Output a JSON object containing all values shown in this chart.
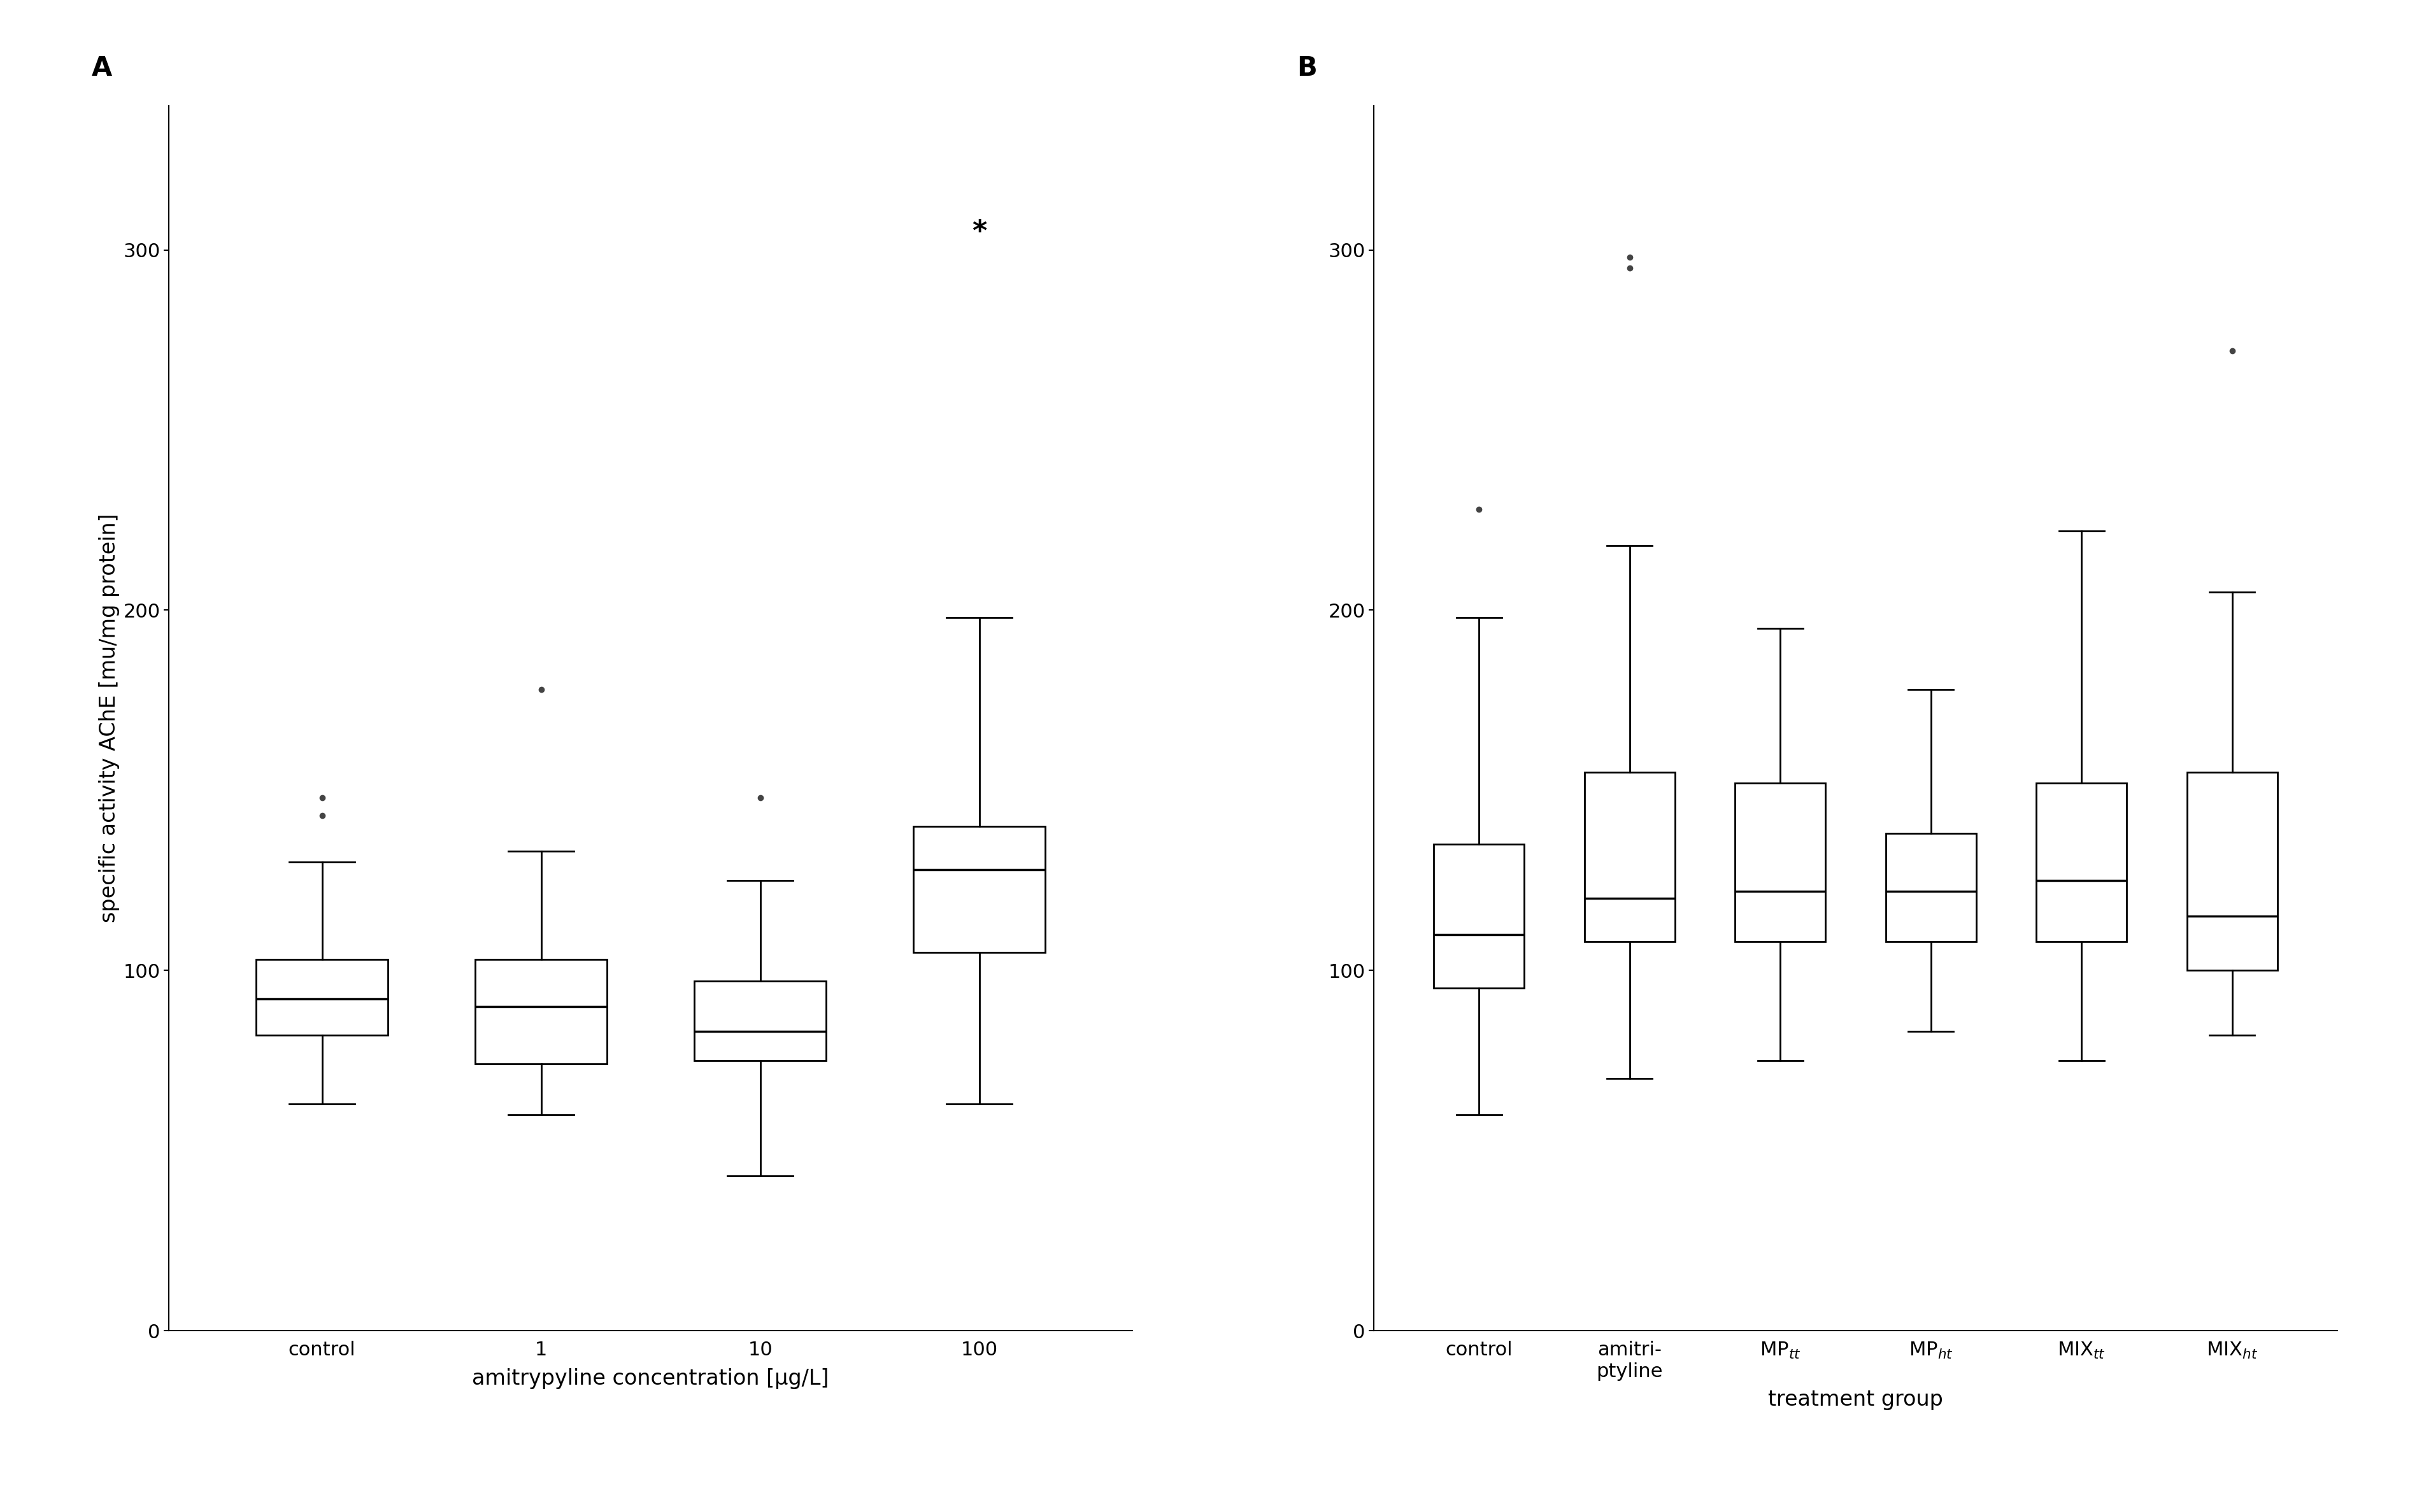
{
  "panel_A": {
    "labels": [
      "control",
      "1",
      "10",
      "100"
    ],
    "xlabel": "amitrypyline concentration [μg/L]",
    "ylabel": "specific activity AChE [mu/mg protein]",
    "boxes": [
      {
        "q1": 82,
        "median": 92,
        "q3": 103,
        "whisker_low": 63,
        "whisker_high": 130,
        "fliers": [
          148,
          143
        ]
      },
      {
        "q1": 74,
        "median": 90,
        "q3": 103,
        "whisker_low": 60,
        "whisker_high": 133,
        "fliers": [
          178
        ]
      },
      {
        "q1": 75,
        "median": 83,
        "q3": 97,
        "whisker_low": 43,
        "whisker_high": 125,
        "fliers": [
          148
        ]
      },
      {
        "q1": 105,
        "median": 128,
        "q3": 140,
        "whisker_low": 63,
        "whisker_high": 198,
        "fliers_star": [
          305
        ]
      }
    ],
    "ylim": [
      0,
      340
    ],
    "yticks": [
      0,
      100,
      200,
      300
    ]
  },
  "panel_B": {
    "xlabel": "treatment group",
    "boxes": [
      {
        "q1": 95,
        "median": 110,
        "q3": 135,
        "whisker_low": 60,
        "whisker_high": 198,
        "fliers": [
          228
        ]
      },
      {
        "q1": 108,
        "median": 120,
        "q3": 155,
        "whisker_low": 70,
        "whisker_high": 218,
        "fliers": [
          295,
          298
        ]
      },
      {
        "q1": 108,
        "median": 122,
        "q3": 152,
        "whisker_low": 75,
        "whisker_high": 195,
        "fliers": []
      },
      {
        "q1": 108,
        "median": 122,
        "q3": 138,
        "whisker_low": 83,
        "whisker_high": 178,
        "fliers": []
      },
      {
        "q1": 108,
        "median": 125,
        "q3": 152,
        "whisker_low": 75,
        "whisker_high": 222,
        "fliers": []
      },
      {
        "q1": 100,
        "median": 115,
        "q3": 155,
        "whisker_low": 82,
        "whisker_high": 205,
        "fliers": [
          272
        ]
      }
    ],
    "ylim": [
      0,
      340
    ],
    "yticks": [
      0,
      100,
      200,
      300
    ]
  },
  "label_A": "A",
  "label_B": "B",
  "box_width": 0.6,
  "linewidth": 2.0,
  "flier_size": 7,
  "flier_color": "#444444",
  "box_facecolor": "white",
  "box_edgecolor": "black",
  "median_color": "black",
  "median_linewidth": 2.5,
  "whisker_color": "black",
  "cap_color": "black",
  "figure_bg": "white",
  "font_size_axis_label": 24,
  "font_size_ticks": 22,
  "font_size_panel": 30,
  "font_size_star": 32
}
